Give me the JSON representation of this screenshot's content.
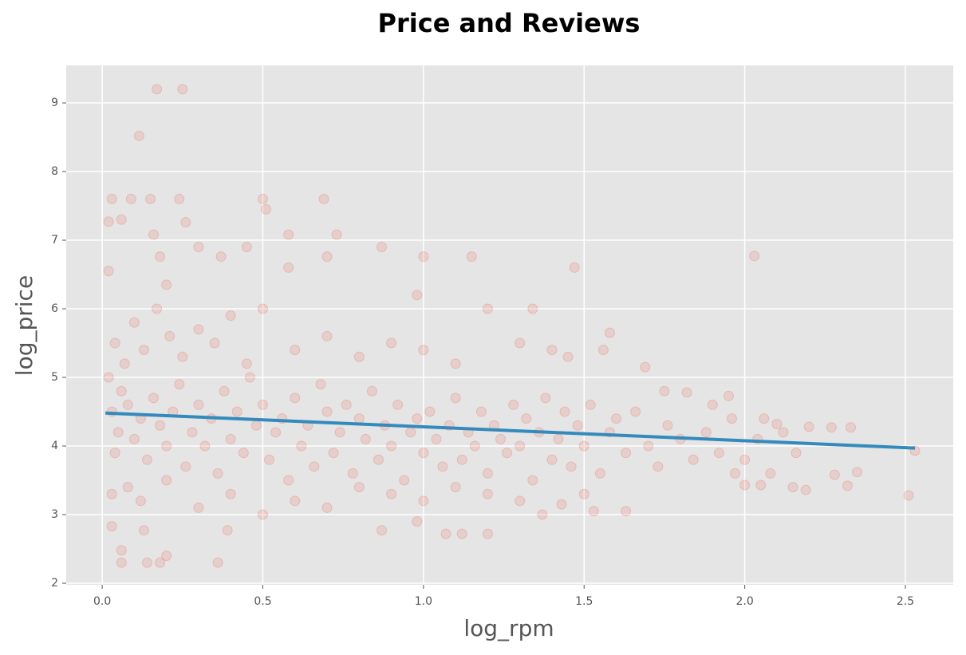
{
  "chart_data": {
    "type": "scatter",
    "title": "Price and Reviews",
    "xlabel": "log_rpm",
    "ylabel": "log_price",
    "color": "#e24a33",
    "alpha": 0.15,
    "grid": true,
    "xlim": [
      -0.112,
      2.649
    ],
    "ylim": [
      1.977,
      9.547
    ],
    "xticks": [
      {
        "value": 0,
        "label": "0.0"
      },
      0.5,
      {
        "value": 1,
        "label": "1.0"
      },
      1.5,
      {
        "value": 2,
        "label": "2.0"
      },
      2.5
    ],
    "yticks": [
      2,
      3,
      4,
      5,
      6,
      7,
      8,
      9
    ],
    "x": [
      0.17,
      0.25,
      0.115,
      0.03,
      0.09,
      0.15,
      0.24,
      0.5,
      0.69,
      0.51,
      0.02,
      0.06,
      0.26,
      0.58,
      0.73,
      0.16,
      0.87,
      0.45,
      0.3,
      0.18,
      0.37,
      0.7,
      1.0,
      1.15,
      2.03,
      1.47,
      0.58,
      0.02,
      0.2,
      0.98,
      0.06,
      0.06,
      0.14,
      0.18,
      0.2,
      0.36,
      0.03,
      0.13,
      0.39,
      0.87,
      0.98,
      1.07,
      1.12,
      1.2,
      2.51,
      2.53,
      2.35,
      2.32,
      2.28,
      2.27,
      2.33,
      2.2,
      2.19,
      2.15,
      2.1,
      2.06,
      2.05,
      2.0,
      1.97,
      1.9,
      1.95,
      1.82,
      1.75,
      1.69,
      1.58,
      1.56,
      1.4,
      1.45,
      1.63,
      1.53,
      1.5,
      1.43,
      1.37,
      0.03,
      0.05,
      0.04,
      0.06,
      0.08,
      0.1,
      0.12,
      0.14,
      0.16,
      0.18,
      0.2,
      0.22,
      0.24,
      0.26,
      0.28,
      0.3,
      0.32,
      0.34,
      0.36,
      0.38,
      0.4,
      0.42,
      0.44,
      0.46,
      0.48,
      0.5,
      0.52,
      0.54,
      0.56,
      0.58,
      0.6,
      0.62,
      0.64,
      0.66,
      0.68,
      0.7,
      0.72,
      0.74,
      0.76,
      0.78,
      0.8,
      0.82,
      0.84,
      0.86,
      0.88,
      0.9,
      0.92,
      0.94,
      0.96,
      0.98,
      1.0,
      1.02,
      1.04,
      1.06,
      1.08,
      1.1,
      1.12,
      1.14,
      1.16,
      1.18,
      1.2,
      1.22,
      1.24,
      1.26,
      1.28,
      1.3,
      1.32,
      1.34,
      1.36,
      1.38,
      1.4,
      1.42,
      1.44,
      1.46,
      1.48,
      1.5,
      1.52,
      1.55,
      1.58,
      1.6,
      1.63,
      1.66,
      1.7,
      1.73,
      1.76,
      1.8,
      1.84,
      1.88,
      1.92,
      1.96,
      2.0,
      2.04,
      2.08,
      2.12,
      2.16,
      0.02,
      0.04,
      0.07,
      0.1,
      0.13,
      0.17,
      0.21,
      0.25,
      0.3,
      0.35,
      0.4,
      0.45,
      0.5,
      0.6,
      0.7,
      0.8,
      0.9,
      1.0,
      1.1,
      1.2,
      1.3,
      1.34,
      0.03,
      0.08,
      0.12,
      0.2,
      0.3,
      0.4,
      0.5,
      0.6,
      0.7,
      0.8,
      0.9,
      1.0,
      1.1,
      1.2,
      1.3
    ],
    "y": [
      9.2,
      9.2,
      8.52,
      7.6,
      7.6,
      7.6,
      7.6,
      7.6,
      7.6,
      7.45,
      7.27,
      7.3,
      7.26,
      7.08,
      7.08,
      7.08,
      6.9,
      6.9,
      6.9,
      6.76,
      6.76,
      6.76,
      6.76,
      6.76,
      6.77,
      6.6,
      6.6,
      6.55,
      6.35,
      6.2,
      2.48,
      2.3,
      2.3,
      2.3,
      2.4,
      2.3,
      2.83,
      2.77,
      2.77,
      2.77,
      2.9,
      2.72,
      2.72,
      2.72,
      3.28,
      3.93,
      3.62,
      3.42,
      3.58,
      4.27,
      4.27,
      4.28,
      3.36,
      3.4,
      4.32,
      4.4,
      3.43,
      3.43,
      3.6,
      4.6,
      4.73,
      4.78,
      4.8,
      5.15,
      5.65,
      5.4,
      5.4,
      5.3,
      3.05,
      3.05,
      3.3,
      3.15,
      3.0,
      4.5,
      4.2,
      3.9,
      4.8,
      4.6,
      4.1,
      4.4,
      3.8,
      4.7,
      4.3,
      4.0,
      4.5,
      4.9,
      3.7,
      4.2,
      4.6,
      4.0,
      4.4,
      3.6,
      4.8,
      4.1,
      4.5,
      3.9,
      5.0,
      4.3,
      4.6,
      3.8,
      4.2,
      4.4,
      3.5,
      4.7,
      4.0,
      4.3,
      3.7,
      4.9,
      4.5,
      3.9,
      4.2,
      4.6,
      3.6,
      4.4,
      4.1,
      4.8,
      3.8,
      4.3,
      4.0,
      4.6,
      3.5,
      4.2,
      4.4,
      3.9,
      4.5,
      4.1,
      3.7,
      4.3,
      4.7,
      3.8,
      4.2,
      4.0,
      4.5,
      3.6,
      4.3,
      4.1,
      3.9,
      4.6,
      4.0,
      4.4,
      3.5,
      4.2,
      4.7,
      3.8,
      4.1,
      4.5,
      3.7,
      4.3,
      4.0,
      4.6,
      3.6,
      4.2,
      4.4,
      3.9,
      4.5,
      4.0,
      3.7,
      4.3,
      4.1,
      3.8,
      4.2,
      3.9,
      4.4,
      3.8,
      4.1,
      3.6,
      4.2,
      3.9,
      5.0,
      5.5,
      5.2,
      5.8,
      5.4,
      6.0,
      5.6,
      5.3,
      5.7,
      5.5,
      5.9,
      5.2,
      6.0,
      5.4,
      5.6,
      5.3,
      5.5,
      5.4,
      5.2,
      6.0,
      5.5,
      6.0,
      3.3,
      3.4,
      3.2,
      3.5,
      3.1,
      3.3,
      3.0,
      3.2,
      3.1,
      3.4,
      3.3,
      3.2,
      3.4,
      3.3,
      3.2
    ],
    "fit": {
      "x": [
        0.01,
        2.53
      ],
      "y": [
        4.48,
        3.97
      ],
      "color": "#348abd"
    }
  }
}
